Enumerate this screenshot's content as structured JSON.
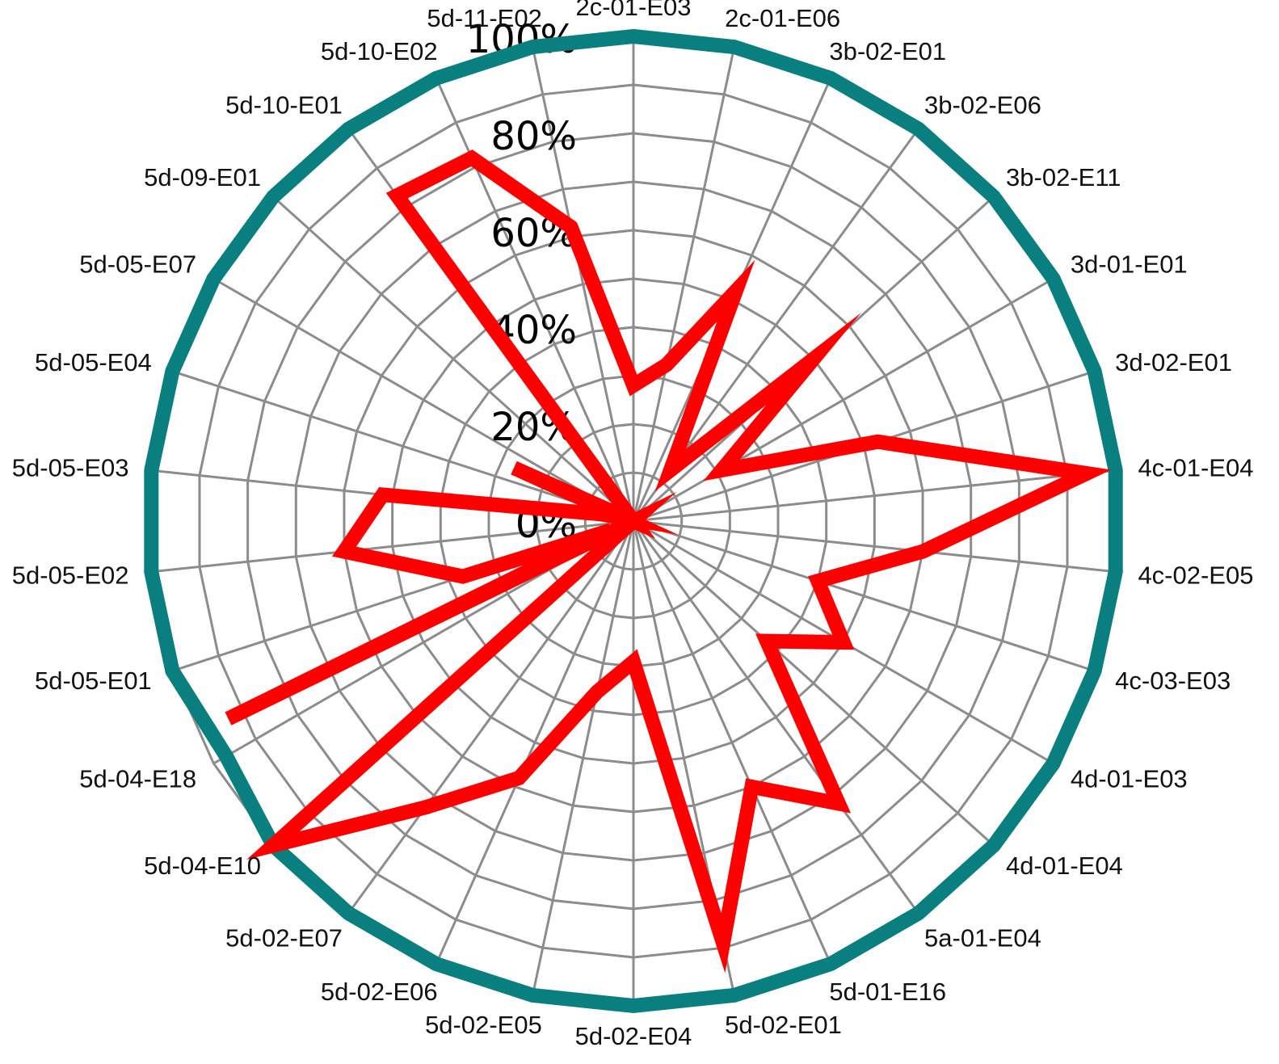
{
  "chart_data": {
    "type": "radar",
    "categories": [
      "2c-01-E03",
      "2c-01-E06",
      "3b-02-E01",
      "3b-02-E06",
      "3b-02-E11",
      "3d-01-E01",
      "3d-02-E01",
      "4c-01-E04",
      "4c-02-E05",
      "4c-03-E03",
      "4d-01-E03",
      "4d-01-E04",
      "5a-01-E04",
      "5d-01-E16",
      "5d-02-E01",
      "5d-02-E04",
      "5d-02-E05",
      "5d-02-E06",
      "5d-02-E07",
      "5d-04-E10",
      "5d-04-E18",
      "5d-05-E01",
      "5d-05-E02",
      "5d-05-E03",
      "5d-05-E04",
      "5d-05-E07",
      "5d-09-E01",
      "5d-10-E01",
      "5d-10-E02",
      "5d-11-E02"
    ],
    "ticks": [
      "0%",
      "20%",
      "40%",
      "60%",
      "80%",
      "100%"
    ],
    "rlim": [
      0,
      100
    ],
    "series": [
      {
        "color": "#0a7f7f",
        "values": [
          100,
          100,
          100,
          100,
          100,
          100,
          100,
          100,
          100,
          100,
          100,
          100,
          100,
          100,
          100,
          100,
          100,
          100,
          100,
          100,
          97,
          100,
          100,
          100,
          100,
          100,
          100,
          100,
          100,
          100
        ]
      },
      {
        "color": "#ff0000",
        "values": [
          28,
          33,
          52,
          13,
          50,
          21,
          53,
          94,
          60,
          40,
          50,
          37,
          72,
          60,
          89,
          29,
          36,
          58,
          73,
          100,
          0,
          37,
          60,
          52,
          2,
          0,
          0,
          83,
          82,
          62
        ]
      }
    ],
    "extra_vertices": [
      {
        "after": 20,
        "values": [
          93,
          5
        ]
      },
      {
        "after": 23,
        "values": [
          7
        ]
      },
      {
        "after": 24,
        "values": [
          27
        ]
      }
    ],
    "grid": true
  }
}
